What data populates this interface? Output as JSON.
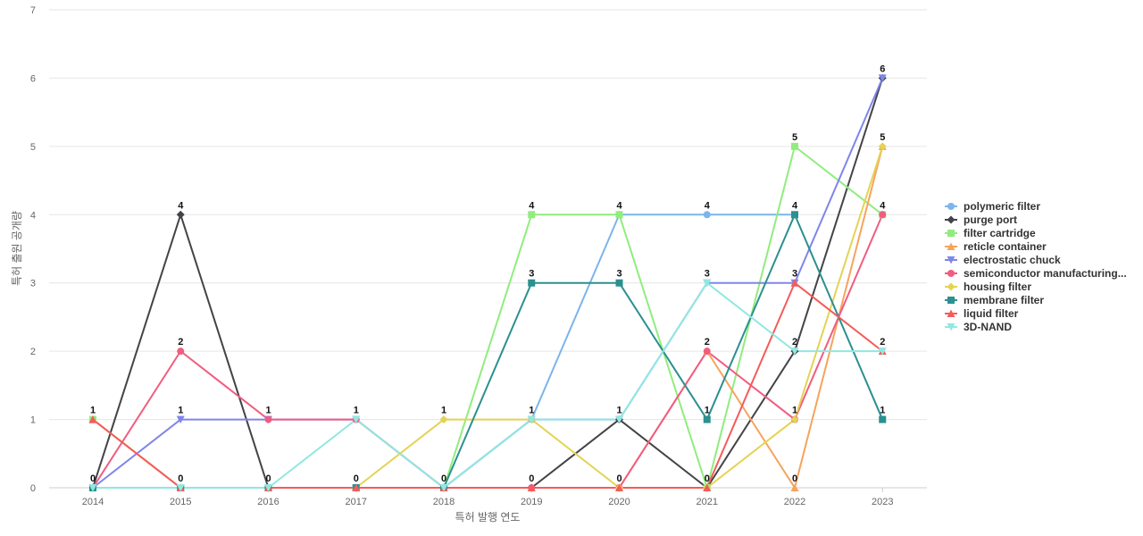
{
  "chart_data": {
    "type": "line",
    "title": "",
    "xlabel": "특허 발행 연도",
    "ylabel": "특허 출원 공개량",
    "x": [
      "2014",
      "2015",
      "2016",
      "2017",
      "2018",
      "2019",
      "2020",
      "2021",
      "2022",
      "2023"
    ],
    "ylim": [
      0,
      7
    ],
    "yticks": [
      0,
      1,
      2,
      3,
      4,
      5,
      6,
      7
    ],
    "grid": true,
    "legend_position": "right",
    "series": [
      {
        "name": "polymeric filter",
        "color": "#7cb5ec",
        "marker": "circle",
        "values": [
          0,
          0,
          0,
          0,
          0,
          1,
          4,
          4,
          4,
          null
        ]
      },
      {
        "name": "purge port",
        "color": "#434348",
        "marker": "diamond",
        "values": [
          0,
          4,
          0,
          0,
          0,
          0,
          1,
          0,
          2,
          6
        ]
      },
      {
        "name": "filter cartridge",
        "color": "#90ed7d",
        "marker": "square",
        "values": [
          1,
          0,
          0,
          0,
          0,
          4,
          4,
          0,
          5,
          4
        ]
      },
      {
        "name": "reticle container",
        "color": "#f7a35c",
        "marker": "triangle",
        "values": [
          1,
          0,
          0,
          0,
          0,
          0,
          0,
          2,
          0,
          5
        ]
      },
      {
        "name": "electrostatic chuck",
        "color": "#8085e9",
        "marker": "triangle-down",
        "values": [
          0,
          1,
          1,
          1,
          0,
          1,
          1,
          3,
          3,
          6
        ]
      },
      {
        "name": "semiconductor manufacturing...",
        "color": "#f15c80",
        "marker": "circle",
        "values": [
          0,
          2,
          1,
          1,
          0,
          0,
          0,
          2,
          1,
          4
        ]
      },
      {
        "name": "housing filter",
        "color": "#e4d354",
        "marker": "diamond",
        "values": [
          0,
          0,
          0,
          0,
          1,
          1,
          0,
          0,
          1,
          5
        ]
      },
      {
        "name": "membrane filter",
        "color": "#2b908f",
        "marker": "square",
        "values": [
          0,
          0,
          0,
          0,
          0,
          3,
          3,
          1,
          4,
          1
        ]
      },
      {
        "name": "liquid filter",
        "color": "#f45b5b",
        "marker": "triangle",
        "values": [
          1,
          0,
          0,
          0,
          0,
          0,
          0,
          0,
          3,
          2
        ]
      },
      {
        "name": "3D-NAND",
        "color": "#91e8e1",
        "marker": "triangle-down",
        "values": [
          0,
          0,
          0,
          1,
          0,
          1,
          1,
          3,
          2,
          2
        ]
      }
    ],
    "data_labels": [
      {
        "x": "2014",
        "value": 1
      },
      {
        "x": "2014",
        "value": 0
      },
      {
        "x": "2015",
        "value": 4
      },
      {
        "x": "2015",
        "value": 2
      },
      {
        "x": "2015",
        "value": 1
      },
      {
        "x": "2015",
        "value": 0
      },
      {
        "x": "2016",
        "value": 1
      },
      {
        "x": "2016",
        "value": 0
      },
      {
        "x": "2017",
        "value": 1
      },
      {
        "x": "2017",
        "value": 0
      },
      {
        "x": "2018",
        "value": 1
      },
      {
        "x": "2018",
        "value": 0
      },
      {
        "x": "2019",
        "value": 4
      },
      {
        "x": "2019",
        "value": 3
      },
      {
        "x": "2019",
        "value": 1
      },
      {
        "x": "2019",
        "value": 0
      },
      {
        "x": "2020",
        "value": 4
      },
      {
        "x": "2020",
        "value": 3
      },
      {
        "x": "2020",
        "value": 1
      },
      {
        "x": "2020",
        "value": 0
      },
      {
        "x": "2021",
        "value": 4
      },
      {
        "x": "2021",
        "value": 3
      },
      {
        "x": "2021",
        "value": 2
      },
      {
        "x": "2021",
        "value": 1
      },
      {
        "x": "2021",
        "value": 0
      },
      {
        "x": "2022",
        "value": 5
      },
      {
        "x": "2022",
        "value": 4
      },
      {
        "x": "2022",
        "value": 3
      },
      {
        "x": "2022",
        "value": 2
      },
      {
        "x": "2022",
        "value": 1
      },
      {
        "x": "2022",
        "value": 0
      },
      {
        "x": "2023",
        "value": 6
      },
      {
        "x": "2023",
        "value": 5
      },
      {
        "x": "2023",
        "value": 4
      },
      {
        "x": "2023",
        "value": 2
      },
      {
        "x": "2023",
        "value": 1
      }
    ]
  }
}
